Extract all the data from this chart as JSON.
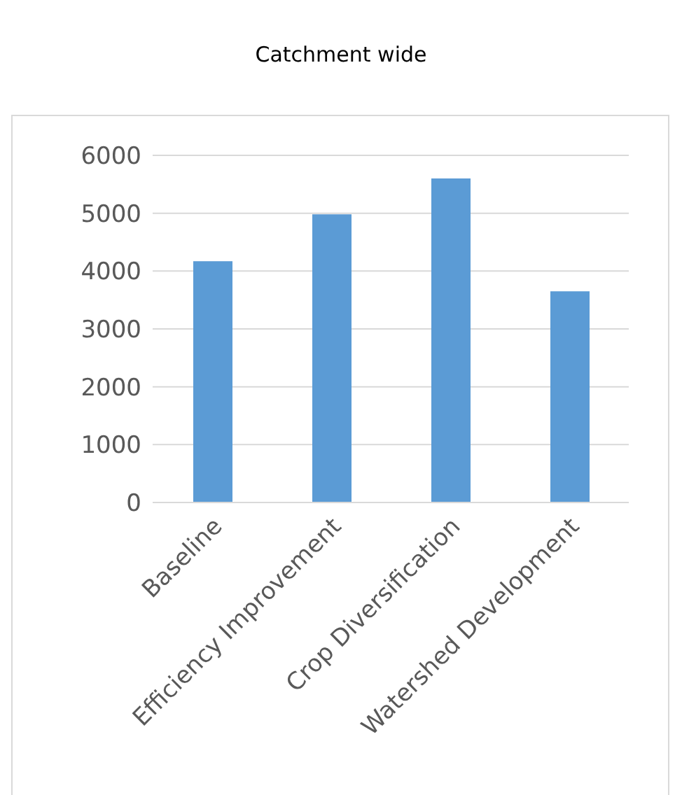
{
  "chart_data": {
    "type": "bar",
    "title": "Catchment wide",
    "categories": [
      "Baseline",
      "Efficiency Improvement",
      "Crop Diversification",
      "Watershed Development"
    ],
    "values": [
      4170,
      4980,
      5600,
      3650
    ],
    "color": "#5b9bd5",
    "ylim": [
      0,
      6000
    ],
    "yticks": [
      0,
      1000,
      2000,
      3000,
      4000,
      5000,
      6000
    ],
    "grid": "y"
  }
}
